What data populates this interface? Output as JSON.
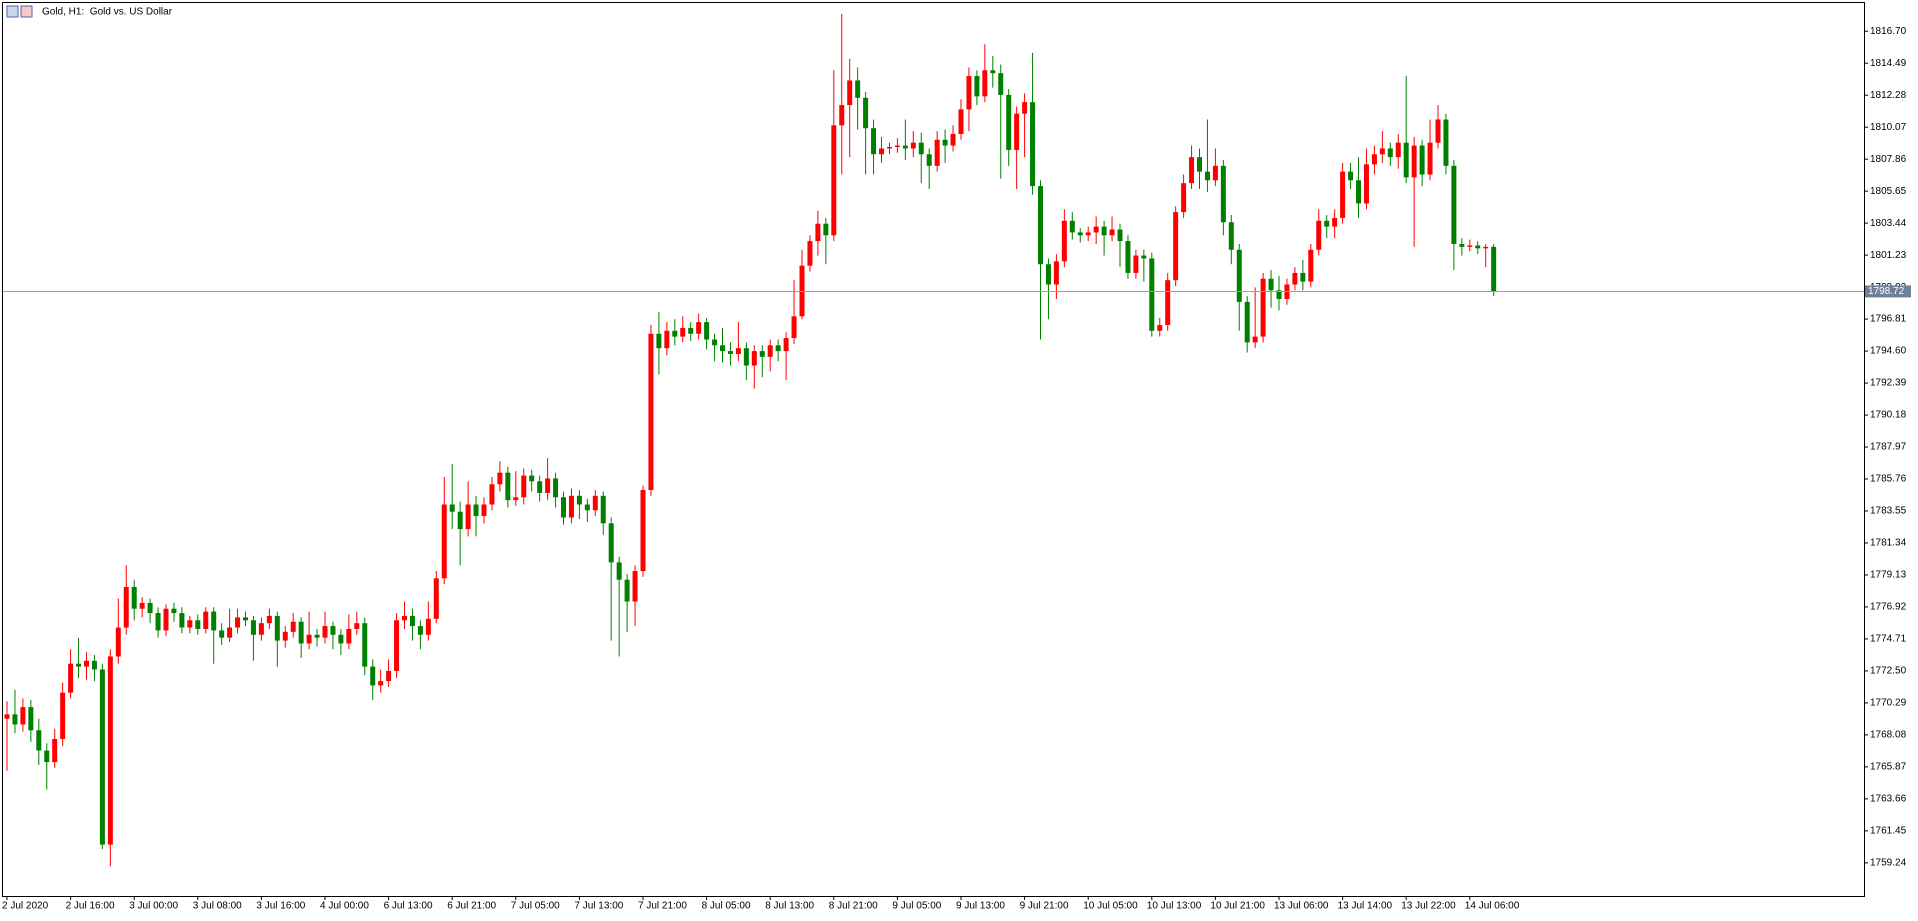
{
  "chart_data": {
    "type": "candlestick",
    "title": "Gold, H1:  Gold vs. US Dollar",
    "up_color": "#ff0000",
    "down_color": "#008000",
    "grid": false,
    "ylim": [
      1756.95,
      1818.65
    ],
    "yticks": [
      {
        "value": 1816.7,
        "label": "1816.70"
      },
      1814.49,
      1812.28,
      1810.07,
      1807.86,
      1805.65,
      1803.44,
      1801.23,
      1799.02,
      1796.81,
      {
        "value": 1794.6,
        "label": "1794.60"
      },
      1792.39,
      1790.18,
      1787.97,
      1785.76,
      1783.55,
      1781.34,
      1779.13,
      1776.92,
      1774.71,
      {
        "value": 1772.5,
        "label": "1772.50"
      },
      1770.29,
      1768.08,
      1765.87,
      1763.66,
      1761.45,
      1759.24
    ],
    "last_price": 1798.72,
    "categories": [
      "2 Jul 2020",
      null,
      null,
      null,
      null,
      null,
      null,
      null,
      "2 Jul 16:00",
      null,
      null,
      null,
      null,
      null,
      null,
      null,
      "3 Jul 00:00",
      null,
      null,
      null,
      null,
      null,
      null,
      null,
      "3 Jul 08:00",
      null,
      null,
      null,
      null,
      null,
      null,
      null,
      "3 Jul 16:00",
      null,
      null,
      null,
      null,
      null,
      null,
      null,
      "4 Jul 00:00",
      null,
      null,
      null,
      null,
      null,
      null,
      null,
      "6 Jul 13:00",
      null,
      null,
      null,
      null,
      null,
      null,
      null,
      "6 Jul 21:00",
      null,
      null,
      null,
      null,
      null,
      null,
      null,
      "7 Jul 05:00",
      null,
      null,
      null,
      null,
      null,
      null,
      null,
      "7 Jul 13:00",
      null,
      null,
      null,
      null,
      null,
      null,
      null,
      "7 Jul 21:00",
      null,
      null,
      null,
      null,
      null,
      null,
      null,
      "8 Jul 05:00",
      null,
      null,
      null,
      null,
      null,
      null,
      null,
      "8 Jul 13:00",
      null,
      null,
      null,
      null,
      null,
      null,
      null,
      "8 Jul 21:00",
      null,
      null,
      null,
      null,
      null,
      null,
      null,
      "9 Jul 05:00",
      null,
      null,
      null,
      null,
      null,
      null,
      null,
      "9 Jul 13:00",
      null,
      null,
      null,
      null,
      null,
      null,
      null,
      "9 Jul 21:00",
      null,
      null,
      null,
      null,
      null,
      null,
      null,
      "10 Jul 05:00",
      null,
      null,
      null,
      null,
      null,
      null,
      null,
      "10 Jul 13:00",
      null,
      null,
      null,
      null,
      null,
      null,
      null,
      "10 Jul 21:00",
      null,
      null,
      null,
      null,
      null,
      null,
      null,
      "13 Jul 06:00",
      null,
      null,
      null,
      null,
      null,
      null,
      null,
      "13 Jul 14:00",
      null,
      null,
      null,
      null,
      null,
      null,
      null,
      "13 Jul 22:00",
      null,
      null,
      null,
      null,
      null,
      null,
      null,
      "14 Jul 06:00",
      null,
      null,
      null
    ],
    "open": [
      1769.2,
      1769.5,
      1768.8,
      1770.0,
      1768.4,
      1767.0,
      1766.2,
      1767.8,
      1771.0,
      1773.0,
      1772.8,
      1773.2,
      1772.6,
      1760.5,
      1773.5,
      1775.5,
      1778.3,
      1776.8,
      1777.2,
      1776.5,
      1775.3,
      1776.8,
      1776.5,
      1775.5,
      1776.0,
      1775.4,
      1776.6,
      1775.3,
      1774.8,
      1775.5,
      1776.2,
      1776.0,
      1775.0,
      1775.8,
      1776.3,
      1774.6,
      1775.2,
      1775.9,
      1774.4,
      1775.0,
      1774.8,
      1775.6,
      1775.0,
      1774.4,
      1775.4,
      1775.8,
      1772.8,
      1771.5,
      1771.8,
      1772.5,
      1776.0,
      1776.3,
      1775.6,
      1775.0,
      1776.1,
      1778.9,
      1784.0,
      1783.5,
      1782.3,
      1784.0,
      1783.2,
      1784.0,
      1785.4,
      1786.2,
      1784.3,
      1784.5,
      1786.0,
      1785.6,
      1784.8,
      1785.8,
      1784.5,
      1783.1,
      1784.6,
      1784.0,
      1783.6,
      1784.6,
      1782.7,
      1780.0,
      1778.8,
      1777.3,
      1779.4,
      1785.0,
      1795.8,
      1794.8,
      1796.0,
      1795.6,
      1796.2,
      1795.8,
      1796.6,
      1795.4,
      1795.0,
      1794.6,
      1794.4,
      1794.8,
      1793.6,
      1794.6,
      1794.2,
      1795.0,
      1794.6,
      1795.5,
      1797.0,
      1800.5,
      1802.2,
      1803.4,
      1802.6,
      1810.2,
      1811.6,
      1813.3,
      1812.1,
      1810.0,
      1808.2,
      1808.6,
      1808.7,
      1808.8,
      1808.6,
      1809.0,
      1808.2,
      1807.4,
      1809.2,
      1808.8,
      1809.6,
      1811.3,
      1813.6,
      1812.2,
      1814.0,
      1813.8,
      1812.3,
      1808.5,
      1811.0,
      1811.8,
      1806.0,
      1800.6,
      1799.2,
      1800.8,
      1803.6,
      1802.8,
      1802.6,
      1802.8,
      1803.2,
      1802.6,
      1803.0,
      1802.2,
      1800.0,
      1801.2,
      1801.0,
      1796.0,
      1796.4,
      1799.5,
      1804.2,
      1806.2,
      1808.0,
      1807.0,
      1806.4,
      1807.4,
      1803.5,
      1801.6,
      1798.0,
      1795.2,
      1795.6,
      1799.6,
      1798.8,
      1798.2,
      1799.2,
      1800.0,
      1799.4,
      1801.6,
      1803.6,
      1803.2,
      1803.8,
      1807.0,
      1806.4,
      1804.8,
      1807.5,
      1808.2,
      1808.6,
      1808.0,
      1809.0,
      1806.6,
      1808.8,
      1806.8,
      1809.0,
      1810.6,
      1807.4,
      1802.0,
      1801.8,
      1801.9,
      1801.7,
      1801.8
    ],
    "high": [
      1770.4,
      1771.2,
      1770.6,
      1770.5,
      1769.2,
      1767.5,
      1768.5,
      1771.7,
      1774.0,
      1774.8,
      1773.8,
      1773.6,
      1773.0,
      1774.0,
      1777.5,
      1779.8,
      1778.8,
      1777.6,
      1777.5,
      1776.9,
      1777.1,
      1777.2,
      1776.9,
      1776.3,
      1776.4,
      1776.9,
      1776.9,
      1775.8,
      1776.8,
      1776.8,
      1776.6,
      1776.3,
      1776.2,
      1776.8,
      1776.6,
      1775.6,
      1776.5,
      1776.2,
      1776.6,
      1775.4,
      1776.6,
      1775.9,
      1775.4,
      1776.4,
      1776.6,
      1776.2,
      1773.3,
      1772.6,
      1773.3,
      1776.5,
      1777.3,
      1776.8,
      1776.0,
      1777.3,
      1779.4,
      1785.9,
      1786.8,
      1784.2,
      1785.6,
      1784.6,
      1784.5,
      1785.9,
      1787.0,
      1786.6,
      1786.3,
      1786.5,
      1786.4,
      1786.0,
      1787.2,
      1786.2,
      1784.9,
      1785.1,
      1785.0,
      1784.4,
      1785.0,
      1784.9,
      1783.1,
      1780.4,
      1779.2,
      1779.8,
      1785.3,
      1796.4,
      1797.3,
      1796.6,
      1796.8,
      1797.0,
      1796.6,
      1797.2,
      1796.9,
      1795.8,
      1796.2,
      1795.2,
      1796.6,
      1795.2,
      1795.0,
      1795.0,
      1795.4,
      1795.4,
      1795.9,
      1799.5,
      1801.6,
      1802.6,
      1804.3,
      1803.8,
      1814.0,
      1817.9,
      1814.8,
      1814.2,
      1812.5,
      1810.6,
      1809.4,
      1809.0,
      1809.3,
      1810.6,
      1809.8,
      1809.7,
      1808.6,
      1809.8,
      1809.9,
      1810.2,
      1812.0,
      1814.2,
      1814.0,
      1815.8,
      1815.0,
      1814.4,
      1812.7,
      1811.5,
      1812.4,
      1815.2,
      1806.4,
      1801.0,
      1801.3,
      1804.4,
      1804.2,
      1803.1,
      1803.2,
      1803.9,
      1803.6,
      1803.9,
      1803.4,
      1802.6,
      1801.6,
      1801.6,
      1801.4,
      1796.9,
      1800.0,
      1804.6,
      1806.8,
      1808.8,
      1808.6,
      1810.6,
      1808.6,
      1807.8,
      1804.0,
      1802.0,
      1798.4,
      1799.0,
      1800.0,
      1800.2,
      1799.8,
      1799.6,
      1800.4,
      1800.9,
      1802.0,
      1804.4,
      1804.0,
      1804.4,
      1807.6,
      1807.6,
      1808.0,
      1808.6,
      1808.8,
      1809.8,
      1809.0,
      1809.6,
      1813.6,
      1809.4,
      1809.2,
      1810.6,
      1811.6,
      1811.0,
      1807.8,
      1802.4,
      1802.3,
      1802.2,
      1802.0,
      1802.0
    ],
    "low": [
      1765.6,
      1768.2,
      1768.3,
      1767.6,
      1766.0,
      1764.3,
      1765.8,
      1767.3,
      1770.6,
      1772.0,
      1771.9,
      1771.8,
      1760.2,
      1759.0,
      1773.0,
      1775.0,
      1776.0,
      1776.2,
      1775.8,
      1774.8,
      1774.9,
      1775.9,
      1775.1,
      1775.1,
      1775.0,
      1775.1,
      1773.0,
      1774.3,
      1774.5,
      1775.1,
      1775.6,
      1773.2,
      1774.6,
      1775.4,
      1772.8,
      1774.1,
      1774.8,
      1773.4,
      1774.0,
      1774.2,
      1774.4,
      1774.0,
      1773.6,
      1774.0,
      1775.0,
      1772.2,
      1770.5,
      1771.0,
      1771.4,
      1772.0,
      1775.4,
      1774.6,
      1774.0,
      1774.6,
      1775.8,
      1778.5,
      1782.3,
      1779.8,
      1781.8,
      1781.8,
      1782.7,
      1783.6,
      1784.9,
      1783.8,
      1783.9,
      1784.0,
      1784.9,
      1784.2,
      1784.3,
      1783.8,
      1782.6,
      1782.7,
      1783.0,
      1782.8,
      1783.2,
      1781.9,
      1774.6,
      1773.5,
      1775.2,
      1775.6,
      1779.0,
      1784.6,
      1793.0,
      1794.3,
      1795.0,
      1795.2,
      1795.3,
      1795.4,
      1794.7,
      1793.9,
      1793.8,
      1793.6,
      1793.9,
      1792.6,
      1792.0,
      1792.8,
      1793.2,
      1793.9,
      1792.6,
      1795.1,
      1796.8,
      1800.1,
      1801.2,
      1800.6,
      1802.2,
      1806.8,
      1808.0,
      1809.9,
      1806.8,
      1806.8,
      1807.6,
      1808.2,
      1808.3,
      1807.8,
      1808.0,
      1806.2,
      1805.8,
      1807.0,
      1807.6,
      1808.4,
      1809.2,
      1809.8,
      1811.6,
      1811.8,
      1812.8,
      1806.5,
      1807.4,
      1805.8,
      1808.0,
      1805.4,
      1795.4,
      1796.8,
      1798.2,
      1800.4,
      1802.3,
      1802.1,
      1802.2,
      1802.0,
      1801.2,
      1802.2,
      1800.4,
      1799.6,
      1799.6,
      1799.4,
      1795.6,
      1795.6,
      1796.0,
      1799.1,
      1803.8,
      1805.8,
      1805.8,
      1805.6,
      1806.0,
      1802.6,
      1800.6,
      1796.0,
      1794.5,
      1794.8,
      1795.2,
      1797.6,
      1797.4,
      1797.8,
      1798.8,
      1798.8,
      1799.0,
      1801.2,
      1802.4,
      1802.4,
      1803.4,
      1805.8,
      1803.8,
      1804.4,
      1806.8,
      1807.6,
      1807.4,
      1807.2,
      1806.2,
      1801.8,
      1806.0,
      1806.4,
      1808.6,
      1806.8,
      1800.2,
      1801.2,
      1801.5,
      1801.3,
      1800.4,
      1798.4
    ],
    "close": [
      1769.5,
      1768.8,
      1770.0,
      1768.4,
      1767.0,
      1766.2,
      1767.8,
      1771.0,
      1773.0,
      1772.8,
      1773.2,
      1772.6,
      1760.5,
      1773.5,
      1775.5,
      1778.3,
      1776.8,
      1777.2,
      1776.5,
      1775.3,
      1776.8,
      1776.5,
      1775.5,
      1776.0,
      1775.4,
      1776.6,
      1775.3,
      1774.8,
      1775.5,
      1776.2,
      1776.0,
      1775.0,
      1775.8,
      1776.3,
      1774.6,
      1775.2,
      1775.9,
      1774.4,
      1775.0,
      1774.8,
      1775.6,
      1775.0,
      1774.4,
      1775.4,
      1775.8,
      1772.8,
      1771.5,
      1771.8,
      1772.5,
      1776.0,
      1776.3,
      1775.6,
      1775.0,
      1776.1,
      1778.9,
      1784.0,
      1783.5,
      1782.3,
      1784.0,
      1783.2,
      1784.0,
      1785.4,
      1786.2,
      1784.3,
      1784.5,
      1786.0,
      1785.6,
      1784.8,
      1785.8,
      1784.5,
      1783.1,
      1784.6,
      1784.0,
      1783.6,
      1784.6,
      1782.7,
      1780.0,
      1778.8,
      1777.3,
      1779.4,
      1785.0,
      1795.8,
      1794.8,
      1796.0,
      1795.6,
      1796.2,
      1795.8,
      1796.6,
      1795.4,
      1795.0,
      1794.6,
      1794.4,
      1794.8,
      1793.6,
      1794.6,
      1794.2,
      1795.0,
      1794.6,
      1795.5,
      1797.0,
      1800.5,
      1802.2,
      1803.4,
      1802.6,
      1810.2,
      1811.6,
      1813.3,
      1812.1,
      1810.0,
      1808.2,
      1808.6,
      1808.7,
      1808.8,
      1808.6,
      1809.0,
      1808.2,
      1807.4,
      1809.2,
      1808.8,
      1809.6,
      1811.3,
      1813.6,
      1812.2,
      1814.0,
      1813.8,
      1812.3,
      1808.5,
      1811.0,
      1811.8,
      1806.0,
      1800.6,
      1799.2,
      1800.8,
      1803.6,
      1802.8,
      1802.6,
      1802.8,
      1803.2,
      1802.6,
      1803.0,
      1802.2,
      1800.0,
      1801.2,
      1801.0,
      1796.0,
      1796.4,
      1799.5,
      1804.2,
      1806.2,
      1808.0,
      1807.0,
      1806.4,
      1807.4,
      1803.5,
      1801.6,
      1798.0,
      1795.2,
      1795.6,
      1799.6,
      1798.8,
      1798.2,
      1799.2,
      1800.0,
      1799.4,
      1801.6,
      1803.6,
      1803.2,
      1803.8,
      1807.0,
      1806.4,
      1804.8,
      1807.5,
      1808.2,
      1808.6,
      1808.0,
      1809.0,
      1806.6,
      1808.8,
      1806.8,
      1809.0,
      1810.6,
      1807.4,
      1802.0,
      1801.8,
      1801.9,
      1801.7,
      1801.8,
      1798.7
    ]
  }
}
